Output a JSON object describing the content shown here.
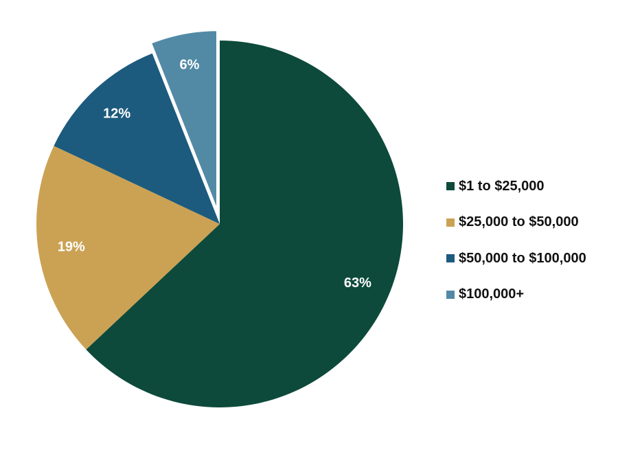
{
  "chart_data": {
    "type": "pie",
    "title": "",
    "categories": [
      "$1 to $25,000",
      "$25,000 to $50,000",
      "$50,000 to $100,000",
      "$100,000+"
    ],
    "values": [
      63,
      19,
      12,
      6
    ],
    "data_labels": [
      "63%",
      "19%",
      "12%",
      "6%"
    ],
    "colors": [
      "#0d4a3b",
      "#cba254",
      "#1c5b7e",
      "#528aa6"
    ],
    "exploded": [
      false,
      false,
      false,
      true
    ],
    "start_angle": "12 o'clock",
    "direction": "clockwise",
    "legend_position": "right"
  }
}
